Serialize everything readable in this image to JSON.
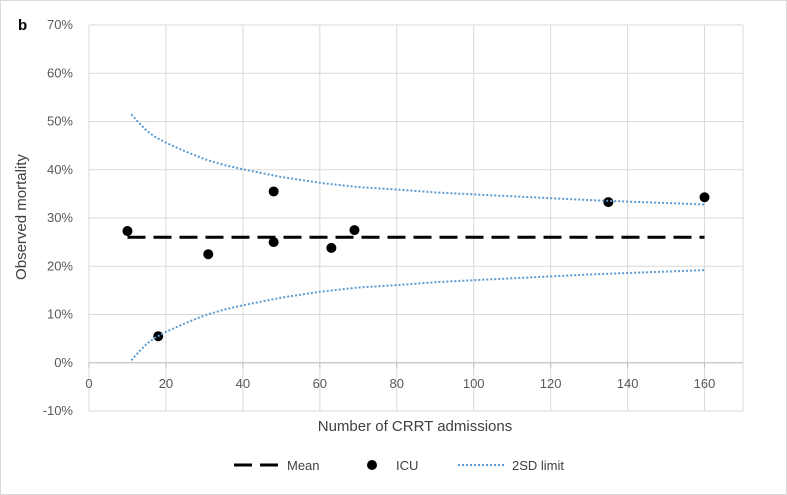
{
  "chart_data": {
    "type": "scatter",
    "panel_label": "b",
    "title": "",
    "xlabel": "Number of CRRT admissions",
    "ylabel": "Observed mortality",
    "xlim": [
      0,
      170
    ],
    "ylim": [
      -0.1,
      0.7
    ],
    "x_ticks": [
      0,
      20,
      40,
      60,
      80,
      100,
      120,
      140,
      160
    ],
    "y_ticks": [
      -0.1,
      0.0,
      0.1,
      0.2,
      0.3,
      0.4,
      0.5,
      0.6,
      0.7
    ],
    "y_tick_labels": [
      "-10%",
      "0%",
      "10%",
      "20%",
      "30%",
      "40%",
      "50%",
      "60%",
      "70%"
    ],
    "grid": "both",
    "legend_position": "bottom",
    "series": [
      {
        "name": "Mean",
        "kind": "line",
        "style": "long-dash",
        "color": "#000000",
        "x": [
          10,
          160
        ],
        "y": [
          0.26,
          0.26
        ]
      },
      {
        "name": "ICU",
        "kind": "scatter",
        "color": "#000000",
        "x": [
          10,
          18,
          31,
          48,
          48,
          63,
          69,
          135,
          160
        ],
        "y": [
          0.273,
          0.055,
          0.225,
          0.355,
          0.25,
          0.238,
          0.275,
          0.333,
          0.343
        ]
      },
      {
        "name": "2SD limit",
        "kind": "line",
        "style": "dotted",
        "color": "#5b9bd5",
        "x": [
          11,
          13,
          15,
          17,
          20,
          25,
          30,
          35,
          40,
          50,
          60,
          70,
          80,
          90,
          100,
          110,
          120,
          130,
          140,
          150,
          160
        ],
        "y": [
          0.515,
          0.497,
          0.481,
          0.469,
          0.456,
          0.438,
          0.422,
          0.41,
          0.401,
          0.385,
          0.373,
          0.364,
          0.359,
          0.353,
          0.349,
          0.345,
          0.341,
          0.337,
          0.334,
          0.331,
          0.328
        ]
      },
      {
        "name": "2SD limit lower",
        "kind": "line",
        "style": "dotted",
        "color": "#5b9bd5",
        "legend": false,
        "x": [
          11,
          13,
          15,
          17,
          20,
          25,
          30,
          35,
          40,
          50,
          60,
          70,
          80,
          90,
          100,
          110,
          120,
          130,
          140,
          150,
          160
        ],
        "y": [
          0.005,
          0.023,
          0.039,
          0.051,
          0.064,
          0.082,
          0.098,
          0.11,
          0.119,
          0.135,
          0.147,
          0.156,
          0.161,
          0.167,
          0.171,
          0.175,
          0.179,
          0.183,
          0.186,
          0.189,
          0.192
        ]
      }
    ],
    "legend": [
      {
        "label": "Mean",
        "symbol": "long-dash",
        "color": "#000000"
      },
      {
        "label": "ICU",
        "symbol": "dot",
        "color": "#000000"
      },
      {
        "label": "2SD limit",
        "symbol": "dotted",
        "color": "#5b9bd5"
      }
    ]
  }
}
